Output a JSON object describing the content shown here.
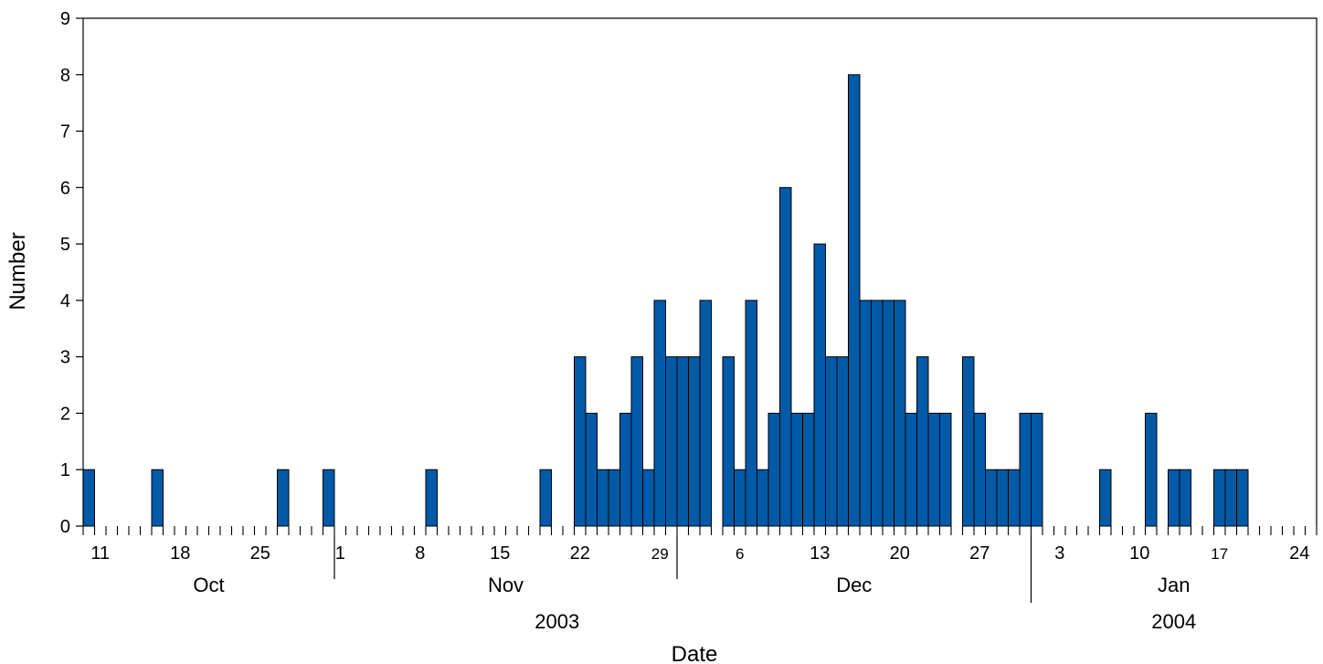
{
  "chart_data": {
    "type": "bar",
    "xlabel": "Date",
    "ylabel": "Number",
    "ylim": [
      0,
      9
    ],
    "yticks": [
      "0",
      "1",
      "2",
      "3",
      "4",
      "5",
      "6",
      "7",
      "8",
      "9"
    ],
    "x_range": [
      "2003-10-10",
      "2004-01-26"
    ],
    "bar_color": "#005aa8",
    "grid": false,
    "legend": "none",
    "dates": [
      "2003-10-10",
      "2003-10-16",
      "2003-10-27",
      "2003-10-31",
      "2003-11-09",
      "2003-11-19",
      "2003-11-22",
      "2003-11-23",
      "2003-11-24",
      "2003-11-25",
      "2003-11-26",
      "2003-11-27",
      "2003-11-28",
      "2003-11-29",
      "2003-11-30",
      "2003-12-01",
      "2003-12-02",
      "2003-12-03",
      "2003-12-05",
      "2003-12-06",
      "2003-12-07",
      "2003-12-08",
      "2003-12-09",
      "2003-12-10",
      "2003-12-11",
      "2003-12-12",
      "2003-12-13",
      "2003-12-14",
      "2003-12-15",
      "2003-12-16",
      "2003-12-17",
      "2003-12-18",
      "2003-12-19",
      "2003-12-20",
      "2003-12-21",
      "2003-12-22",
      "2003-12-23",
      "2003-12-24",
      "2003-12-26",
      "2003-12-27",
      "2003-12-28",
      "2003-12-29",
      "2003-12-30",
      "2003-12-31",
      "2004-01-01",
      "2004-01-07",
      "2004-01-11",
      "2004-01-13",
      "2004-01-14",
      "2004-01-17",
      "2004-01-18",
      "2004-01-19"
    ],
    "values": [
      1,
      1,
      1,
      1,
      1,
      1,
      3,
      2,
      1,
      1,
      2,
      3,
      1,
      4,
      3,
      3,
      3,
      4,
      3,
      1,
      4,
      1,
      2,
      6,
      2,
      2,
      5,
      3,
      3,
      8,
      4,
      4,
      4,
      4,
      2,
      3,
      2,
      2,
      3,
      2,
      1,
      1,
      1,
      2,
      2,
      1,
      2,
      1,
      1,
      1,
      1,
      1
    ],
    "day_tick_labels": [
      {
        "date": "2003-10-11",
        "label": "11"
      },
      {
        "date": "2003-10-18",
        "label": "18"
      },
      {
        "date": "2003-10-25",
        "label": "25"
      },
      {
        "date": "2003-11-01",
        "label": "1"
      },
      {
        "date": "2003-11-08",
        "label": "8"
      },
      {
        "date": "2003-11-15",
        "label": "15"
      },
      {
        "date": "2003-11-22",
        "label": "22"
      },
      {
        "date": "2003-11-29",
        "label": "29"
      },
      {
        "date": "2003-12-06",
        "label": "6"
      },
      {
        "date": "2003-12-13",
        "label": "13"
      },
      {
        "date": "2003-12-20",
        "label": "20"
      },
      {
        "date": "2003-12-27",
        "label": "27"
      },
      {
        "date": "2004-01-03",
        "label": "3"
      },
      {
        "date": "2004-01-10",
        "label": "10"
      },
      {
        "date": "2004-01-17",
        "label": "17"
      },
      {
        "date": "2004-01-24",
        "label": "24"
      }
    ],
    "months": [
      {
        "label": "Oct",
        "start": "2003-10-10",
        "end": "2003-11-01"
      },
      {
        "label": "Nov",
        "start": "2003-11-01",
        "end": "2003-12-01"
      },
      {
        "label": "Dec",
        "start": "2003-12-01",
        "end": "2004-01-01"
      },
      {
        "label": "Jan",
        "start": "2004-01-01",
        "end": "2004-01-26"
      }
    ],
    "years": [
      {
        "label": "2003",
        "start": "2003-10-10",
        "end": "2004-01-01"
      },
      {
        "label": "2004",
        "start": "2004-01-01",
        "end": "2004-01-26"
      }
    ]
  }
}
